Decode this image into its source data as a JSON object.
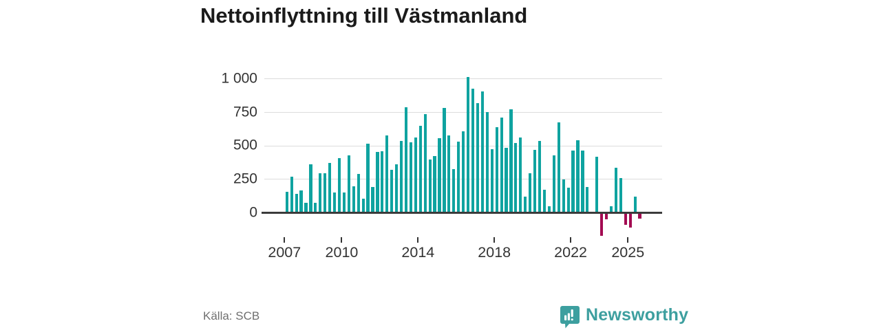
{
  "title": "Nettoinflyttning till Västmanland",
  "source": "Källa: SCB",
  "brand": {
    "name": "Newsworthy",
    "icon": "bar-chart-bubble-icon",
    "color": "#3d9f9f"
  },
  "chart_data": {
    "type": "bar",
    "title": "Nettoinflyttning till Västmanland",
    "xlabel": "",
    "ylabel": "",
    "grid": "horizontal",
    "ylim": [
      -250,
      1050
    ],
    "positive_color": "#0fa3a0",
    "negative_color": "#a30b52",
    "yticks": [
      {
        "value": 0,
        "label": "0"
      },
      {
        "value": 250,
        "label": "250"
      },
      {
        "value": 500,
        "label": "500"
      },
      {
        "value": 750,
        "label": "750"
      },
      {
        "value": 1000,
        "label": "1 000"
      }
    ],
    "xticks": [
      {
        "year": 2007,
        "label": "2007"
      },
      {
        "year": 2010,
        "label": "2010"
      },
      {
        "year": 2014,
        "label": "2014"
      },
      {
        "year": 2018,
        "label": "2018"
      },
      {
        "year": 2022,
        "label": "2022"
      },
      {
        "year": 2025,
        "label": "2025"
      }
    ],
    "x": [
      "2007 Q1",
      "2007 Q2",
      "2007 Q3",
      "2007 Q4",
      "2008 Q1",
      "2008 Q2",
      "2008 Q3",
      "2008 Q4",
      "2009 Q1",
      "2009 Q2",
      "2009 Q3",
      "2009 Q4",
      "2010 Q1",
      "2010 Q2",
      "2010 Q3",
      "2010 Q4",
      "2011 Q1",
      "2011 Q2",
      "2011 Q3",
      "2011 Q4",
      "2012 Q1",
      "2012 Q2",
      "2012 Q3",
      "2012 Q4",
      "2013 Q1",
      "2013 Q2",
      "2013 Q3",
      "2013 Q4",
      "2014 Q1",
      "2014 Q2",
      "2014 Q3",
      "2014 Q4",
      "2015 Q1",
      "2015 Q2",
      "2015 Q3",
      "2015 Q4",
      "2016 Q1",
      "2016 Q2",
      "2016 Q3",
      "2016 Q4",
      "2017 Q1",
      "2017 Q2",
      "2017 Q3",
      "2017 Q4",
      "2018 Q1",
      "2018 Q2",
      "2018 Q3",
      "2018 Q4",
      "2019 Q1",
      "2019 Q2",
      "2019 Q3",
      "2019 Q4",
      "2020 Q1",
      "2020 Q2",
      "2020 Q3",
      "2020 Q4",
      "2021 Q1",
      "2021 Q2",
      "2021 Q3",
      "2021 Q4",
      "2022 Q1",
      "2022 Q2",
      "2022 Q3",
      "2022 Q4",
      "2023 Q1",
      "2023 Q2",
      "2023 Q3",
      "2023 Q4",
      "2024 Q1",
      "2024 Q2",
      "2024 Q3",
      "2024 Q4",
      "2025 Q1",
      "2025 Q2",
      "2025 Q3"
    ],
    "values": [
      155,
      270,
      140,
      165,
      75,
      360,
      75,
      295,
      295,
      370,
      150,
      410,
      150,
      430,
      200,
      290,
      105,
      515,
      195,
      455,
      460,
      580,
      320,
      360,
      535,
      790,
      525,
      565,
      650,
      735,
      400,
      425,
      555,
      785,
      580,
      325,
      530,
      610,
      1015,
      930,
      820,
      905,
      755,
      475,
      640,
      710,
      485,
      775,
      520,
      565,
      120,
      295,
      470,
      535,
      170,
      50,
      430,
      675,
      250,
      185,
      465,
      540,
      465,
      195,
      10,
      420,
      -165,
      -40,
      50,
      335,
      260,
      -80,
      -105,
      120,
      -35
    ]
  }
}
